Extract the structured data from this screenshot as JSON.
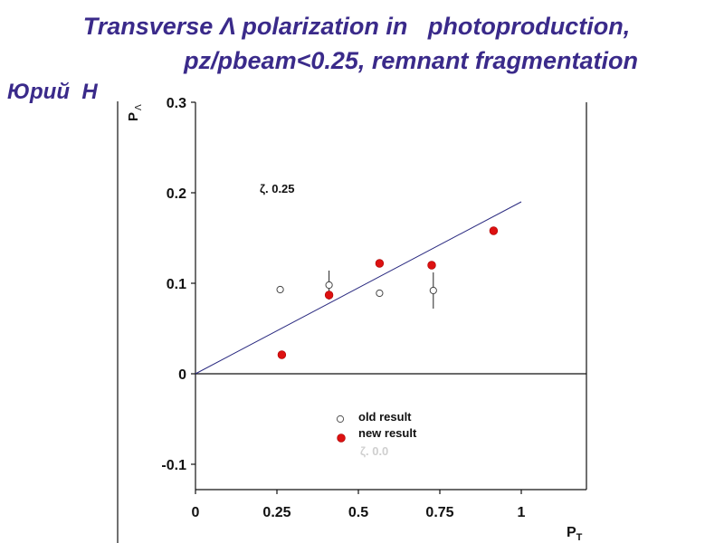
{
  "slide": {
    "title_line1": "Transverse Λ polarization in   photoproduction,",
    "title_line2": "pz/pbeam<0.25, remnant fragmentation",
    "author": "Юрий  Н"
  },
  "chart_data": {
    "type": "scatter",
    "xlabel": "P",
    "xlabel_sub": "T",
    "ylabel": "P",
    "ylabel_sub": "Λ",
    "xlim": [
      0,
      1.2
    ],
    "ylim": [
      -0.13,
      0.3
    ],
    "xticks": [
      0,
      0.25,
      0.5,
      0.75,
      1
    ],
    "xtick_labels": [
      "0",
      "0.25",
      "0.5",
      "0.75",
      "1"
    ],
    "yticks": [
      -0.1,
      0,
      0.1,
      0.2,
      0.3
    ],
    "ytick_labels": [
      "-0.1",
      "0",
      "0.1",
      "0.2",
      "0.3"
    ],
    "annotation": "ζ. 0.25",
    "legend": {
      "position": "bottom-center",
      "entries": [
        "old result",
        "new result"
      ],
      "faded_entry": "ζ. 0.0"
    },
    "series": [
      {
        "name": "old result",
        "marker": "open-circle",
        "x": [
          0.26,
          0.41,
          0.565,
          0.73
        ],
        "y": [
          0.093,
          0.098,
          0.089,
          0.092
        ],
        "err": [
          0,
          0.016,
          0,
          0.02
        ]
      },
      {
        "name": "new result",
        "marker": "filled-circle",
        "color": "#dd1111",
        "x": [
          0.265,
          0.41,
          0.565,
          0.725,
          0.915
        ],
        "y": [
          0.021,
          0.087,
          0.122,
          0.12,
          0.158
        ]
      }
    ],
    "fit_line": {
      "x": [
        0,
        1.0
      ],
      "y": [
        0,
        0.19
      ],
      "color": "#2a2a80"
    }
  }
}
